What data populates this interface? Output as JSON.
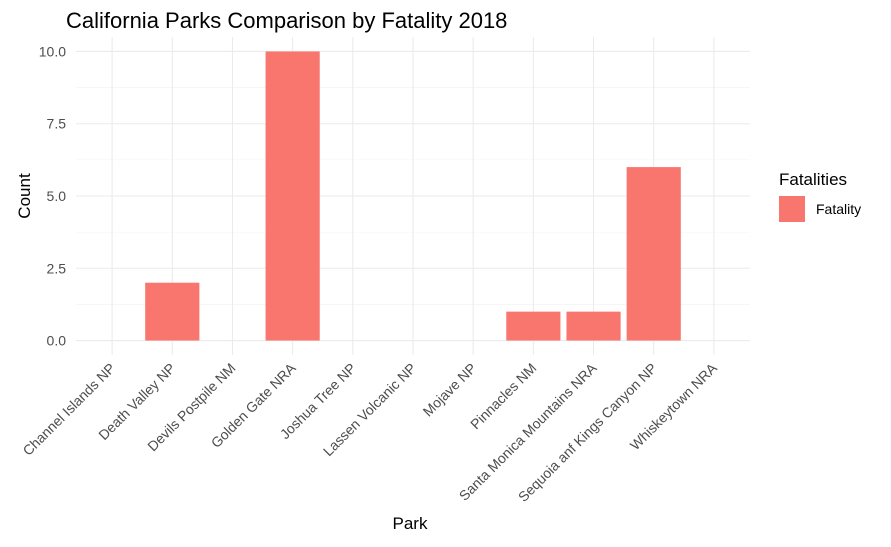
{
  "chart_data": {
    "type": "bar",
    "title": "California Parks Comparison by Fatality 2018",
    "xlabel": "Park",
    "ylabel": "Count",
    "categories": [
      "Channel Islands NP",
      "Death Valley NP",
      "Devils Postpile NM",
      "Golden Gate NRA",
      "Joshua Tree NP",
      "Lassen Volcanic NP",
      "Mojave NP",
      "Pinnacles NM",
      "Santa Monica Mountains NRA",
      "Sequoia anf Kings Canyon NP",
      "Whiskeytown NRA"
    ],
    "series": [
      {
        "name": "Fatality",
        "color": "#f8766d",
        "values": [
          0,
          2,
          0,
          10,
          0,
          0,
          0,
          1,
          1,
          6,
          0
        ]
      }
    ],
    "ylim": [
      -0.5,
      10.5
    ],
    "yticks": [
      0.0,
      2.5,
      5.0,
      7.5,
      10.0
    ],
    "ytick_labels": [
      "0.0",
      "2.5",
      "5.0",
      "7.5",
      "10.0"
    ],
    "grid": true,
    "legend": {
      "title": "Fatalities",
      "placement": "right"
    }
  }
}
